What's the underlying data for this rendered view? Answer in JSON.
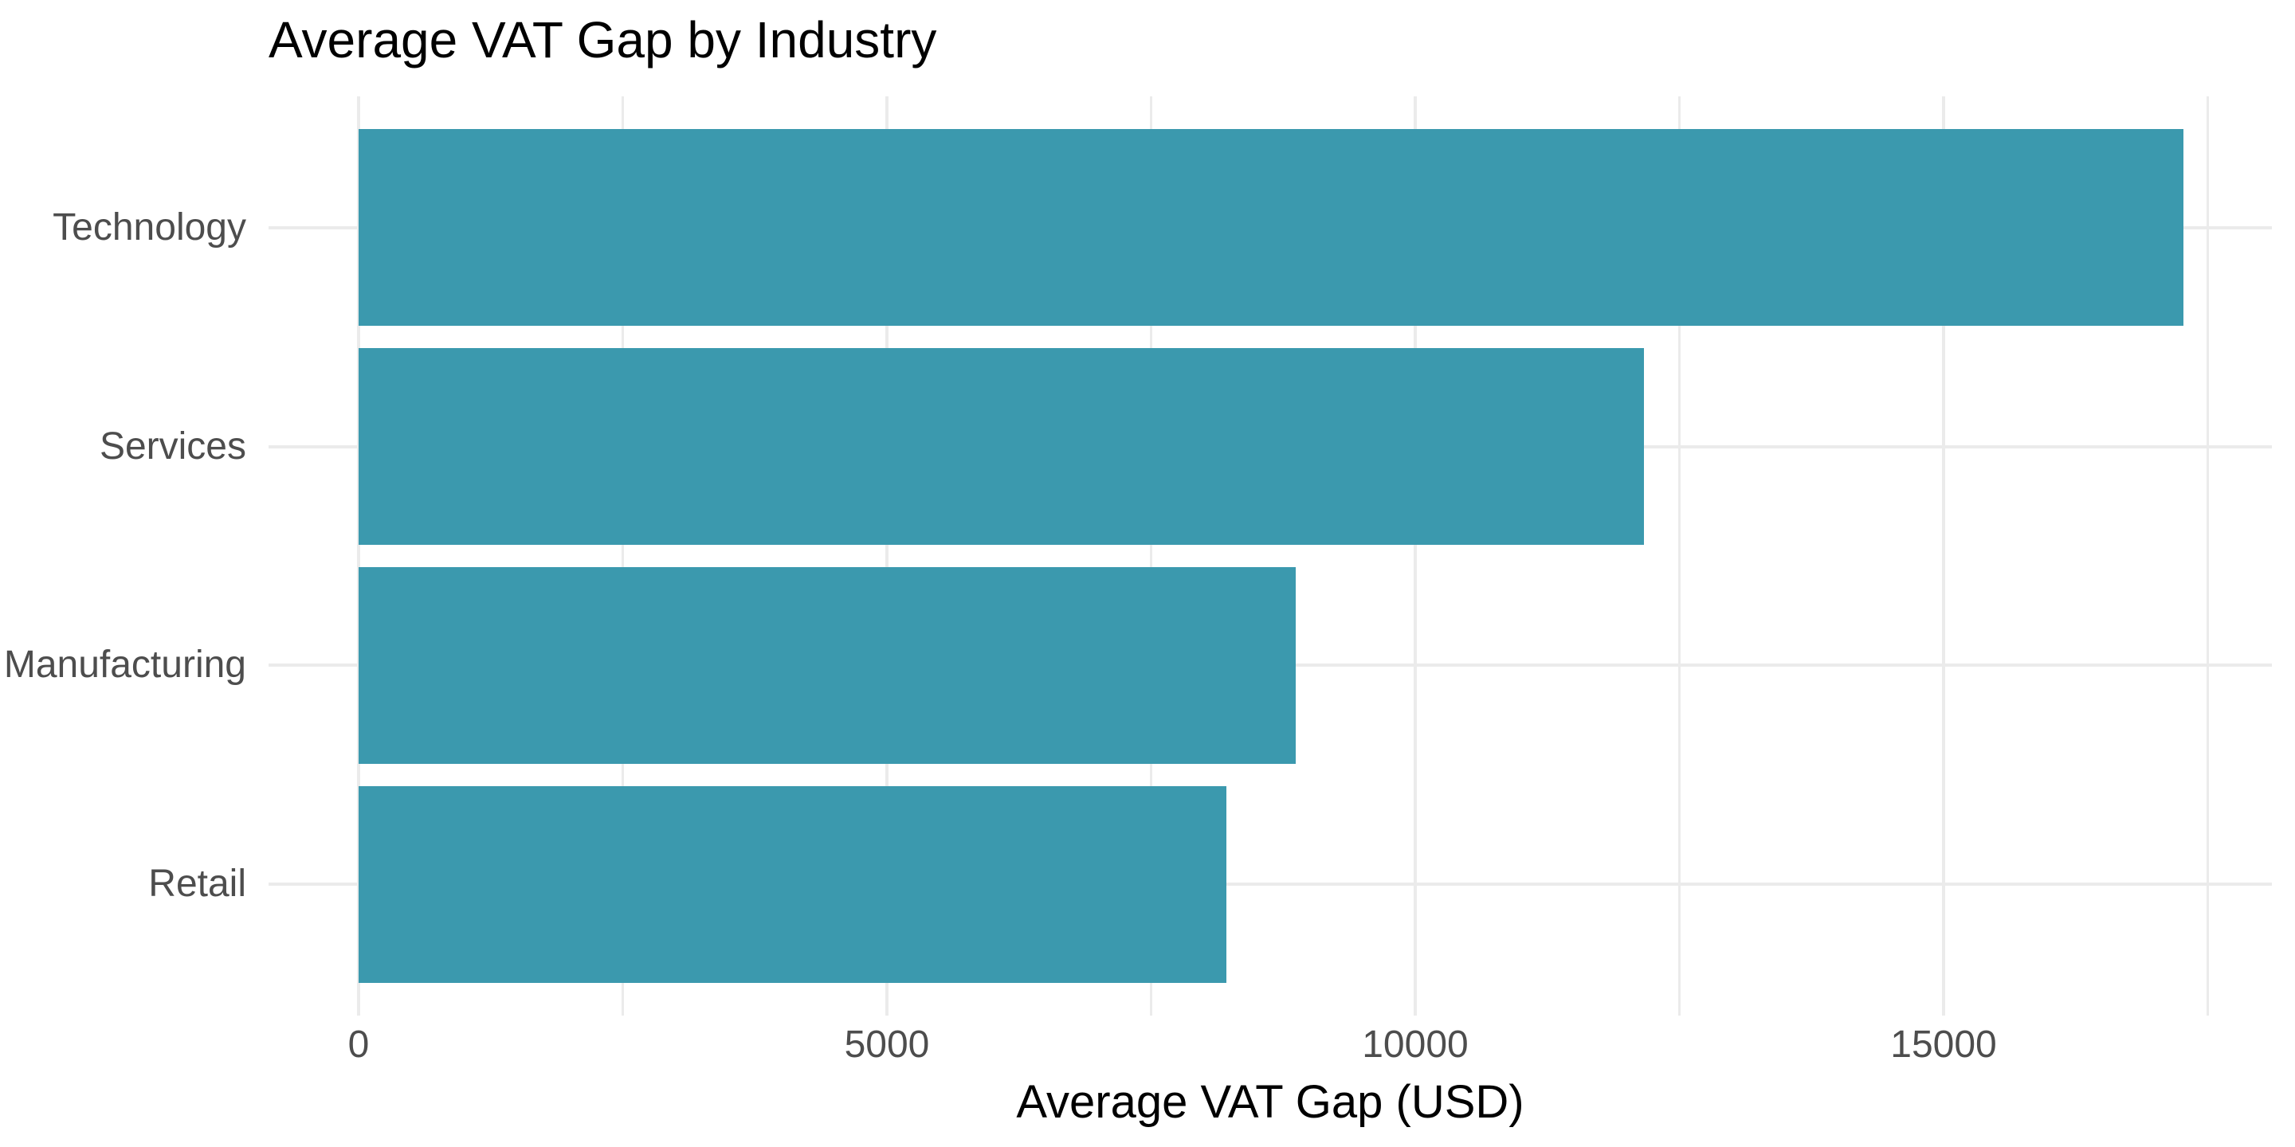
{
  "chart_data": {
    "type": "bar",
    "orientation": "horizontal",
    "title": "Average VAT Gap by Industry",
    "xlabel": "Average VAT Gap (USD)",
    "ylabel": "",
    "categories": [
      "Technology",
      "Services",
      "Manufacturing",
      "Retail"
    ],
    "values": [
      17270,
      12165,
      8870,
      8215
    ],
    "x_ticks": [
      0,
      5000,
      10000,
      15000
    ],
    "x_tick_labels": [
      "0",
      "5000",
      "10000",
      "15000"
    ],
    "x_minor_ticks": [
      2500,
      7500,
      12500,
      17500
    ],
    "xlim": [
      -852,
      18107
    ],
    "bar_start_value": 0,
    "grid": "on",
    "legend": "none",
    "colors": {
      "bar_fill": "#3B99AE",
      "grid_line": "#EBEBEB",
      "axis_text": "#4D4D4D",
      "title_text": "#000000",
      "background": "#FFFFFF"
    }
  }
}
